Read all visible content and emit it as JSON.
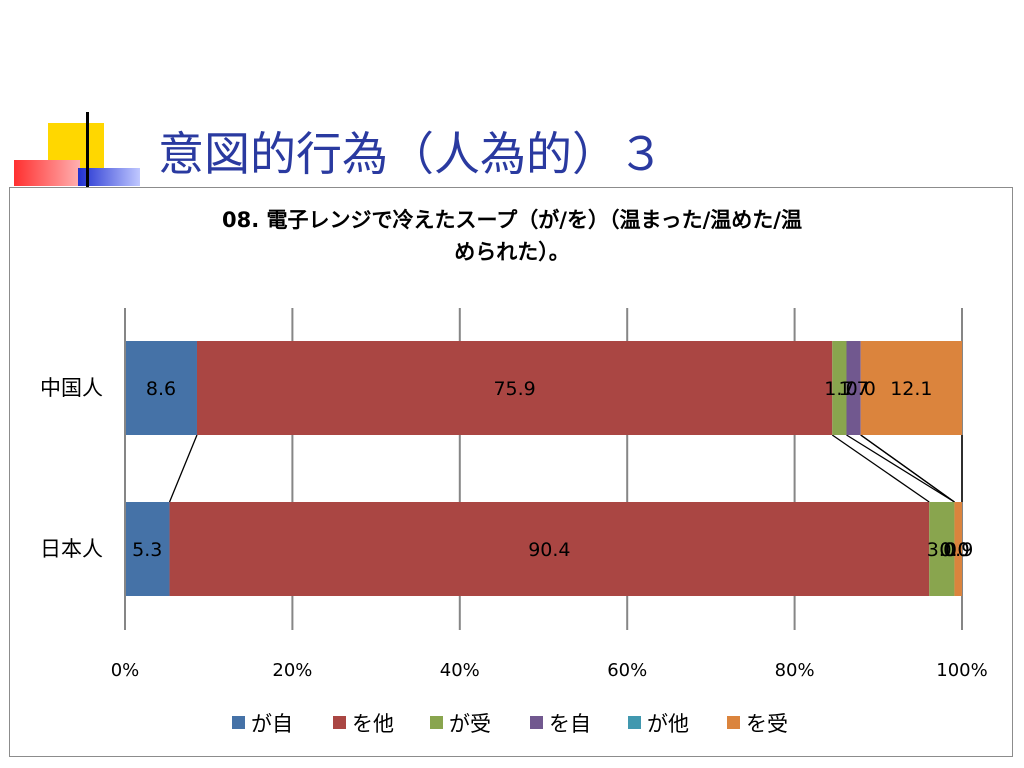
{
  "slide": {
    "title": "意図的行為（人為的）３"
  },
  "chart_data": {
    "type": "bar",
    "orientation": "horizontal",
    "stacked": "percent",
    "title_lines": [
      "08. 電子レンジで冷えたスープ（が/を）（温まった/温めた/温",
      "められた）。"
    ],
    "categories": [
      "中国人",
      "日本人"
    ],
    "series": [
      {
        "name": "が自",
        "color": "#4572a7",
        "values": [
          8.6,
          5.3
        ]
      },
      {
        "name": "を他",
        "color": "#aa4643",
        "values": [
          75.9,
          90.4
        ]
      },
      {
        "name": "が受",
        "color": "#89a54e",
        "values": [
          1.7,
          3.0
        ]
      },
      {
        "name": "を自",
        "color": "#71588f",
        "values": [
          1.7,
          0.0
        ]
      },
      {
        "name": "が他",
        "color": "#4198af",
        "values": [
          0.0,
          0.0
        ]
      },
      {
        "name": "を受",
        "color": "#db843d",
        "values": [
          12.1,
          0.9
        ]
      }
    ],
    "data_labels": [
      [
        "8.6",
        "75.9",
        "1.7",
        "1.7",
        "0.0",
        "12.1"
      ],
      [
        "5.3",
        "90.4",
        "3.0",
        "0.0",
        "0.0",
        "0.9"
      ]
    ],
    "x_ticks": [
      "0%",
      "20%",
      "40%",
      "60%",
      "80%",
      "100%"
    ],
    "xlim": [
      0,
      100
    ],
    "grid": true,
    "series_lines": true,
    "legend_position": "bottom"
  }
}
